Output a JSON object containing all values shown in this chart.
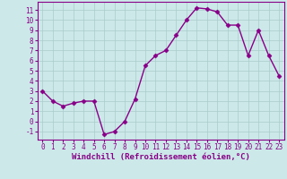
{
  "x": [
    0,
    1,
    2,
    3,
    4,
    5,
    6,
    7,
    8,
    9,
    10,
    11,
    12,
    13,
    14,
    15,
    16,
    17,
    18,
    19,
    20,
    21,
    22,
    23
  ],
  "y": [
    3.0,
    2.0,
    1.5,
    1.8,
    2.0,
    2.0,
    -1.3,
    -1.0,
    0.0,
    2.2,
    5.5,
    6.5,
    7.0,
    8.5,
    10.0,
    11.2,
    11.1,
    10.8,
    9.5,
    9.5,
    6.5,
    9.0,
    6.5,
    4.5
  ],
  "line_color": "#880088",
  "marker": "D",
  "marker_size": 2.5,
  "xlabel": "Windchill (Refroidissement éolien,°C)",
  "xlabel_fontsize": 6.5,
  "xlim": [
    -0.5,
    23.5
  ],
  "ylim": [
    -1.8,
    11.8
  ],
  "yticks": [
    -1,
    0,
    1,
    2,
    3,
    4,
    5,
    6,
    7,
    8,
    9,
    10,
    11
  ],
  "xticks": [
    0,
    1,
    2,
    3,
    4,
    5,
    6,
    7,
    8,
    9,
    10,
    11,
    12,
    13,
    14,
    15,
    16,
    17,
    18,
    19,
    20,
    21,
    22,
    23
  ],
  "grid_color": "#aacccc",
  "bg_color": "#cce8e8",
  "tick_fontsize": 5.5,
  "linewidth": 1.0
}
